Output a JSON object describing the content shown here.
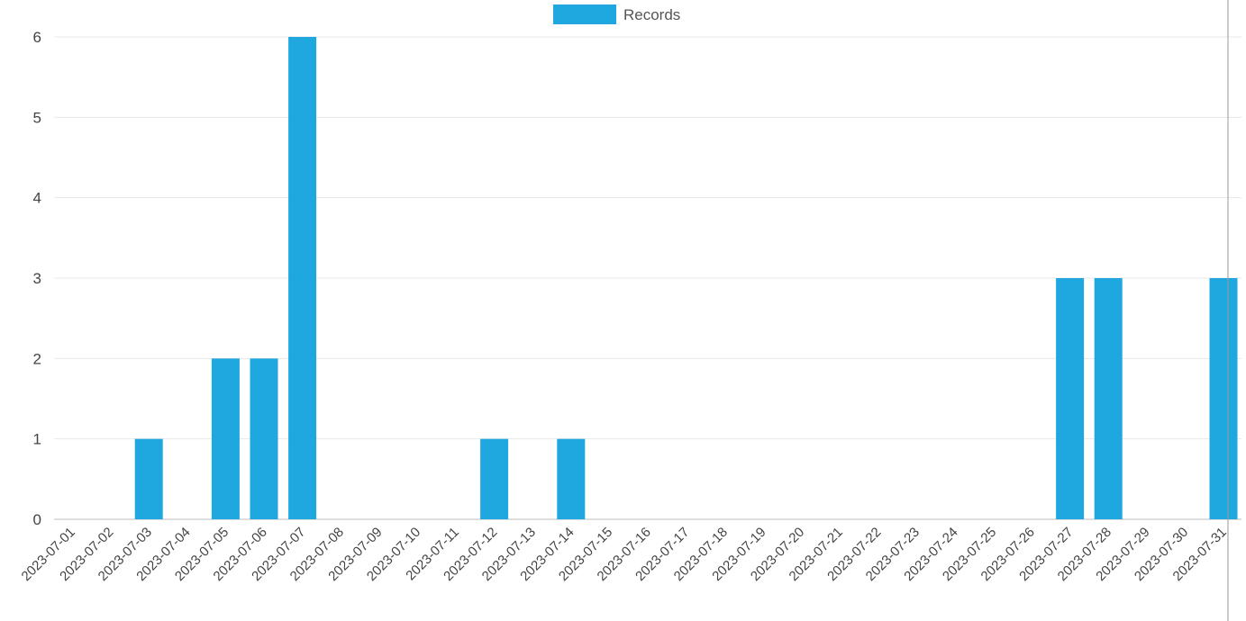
{
  "chart_data": {
    "type": "bar",
    "title": "",
    "xlabel": "",
    "ylabel": "",
    "ylim": [
      0,
      6
    ],
    "yticks": [
      0,
      1,
      2,
      3,
      4,
      5,
      6
    ],
    "grid": true,
    "legend": {
      "position": "top-center"
    },
    "categories": [
      "2023-07-01",
      "2023-07-02",
      "2023-07-03",
      "2023-07-04",
      "2023-07-05",
      "2023-07-06",
      "2023-07-07",
      "2023-07-08",
      "2023-07-09",
      "2023-07-10",
      "2023-07-11",
      "2023-07-12",
      "2023-07-13",
      "2023-07-14",
      "2023-07-15",
      "2023-07-16",
      "2023-07-17",
      "2023-07-18",
      "2023-07-19",
      "2023-07-20",
      "2023-07-21",
      "2023-07-22",
      "2023-07-23",
      "2023-07-24",
      "2023-07-25",
      "2023-07-26",
      "2023-07-27",
      "2023-07-28",
      "2023-07-29",
      "2023-07-30",
      "2023-07-31"
    ],
    "series": [
      {
        "name": "Records",
        "color": "#1fa7e0",
        "values": [
          0,
          0,
          1,
          0,
          2,
          2,
          6,
          0,
          0,
          0,
          0,
          1,
          0,
          1,
          0,
          0,
          0,
          0,
          0,
          0,
          0,
          0,
          0,
          0,
          0,
          0,
          3,
          3,
          0,
          0,
          3
        ]
      }
    ]
  }
}
